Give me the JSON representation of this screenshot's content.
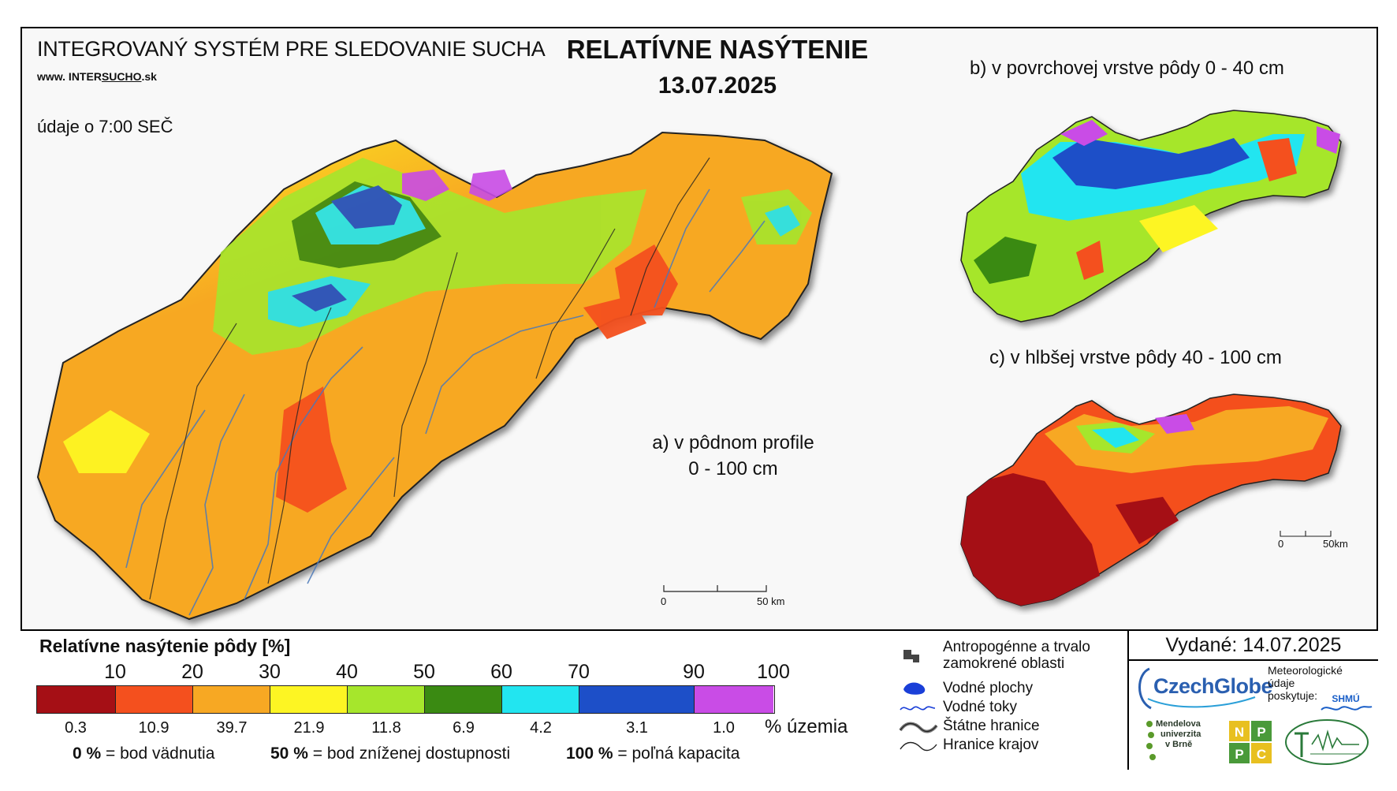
{
  "header": {
    "system_title": "INTEGROVANÝ SYSTÉM PRE SLEDOVANIE SUCHA",
    "website_prefix": "www. INTER",
    "website_underlined": "SUCHO",
    "website_suffix": ".sk",
    "data_time": "údaje o 7:00 SEČ",
    "main_title": "RELATÍVNE NASÝTENIE",
    "date": "13.07.2025"
  },
  "maps": {
    "a_label_line1": "a) v pôdnom profile",
    "a_label_line2": "0 - 100 cm",
    "b_label": "b) v povrchovej vrstve pôdy 0 - 40 cm",
    "c_label": "c) v hlbšej vrstve pôdy 40 - 100 cm",
    "scale_main_zero": "0",
    "scale_main_end": "50 km",
    "scale_small_zero": "0",
    "scale_small_end": "50km"
  },
  "legend": {
    "title": "Relatívne nasýtenie pôdy [%]",
    "ticks": [
      "10",
      "20",
      "30",
      "40",
      "50",
      "60",
      "70",
      "90",
      "100"
    ],
    "classes": [
      {
        "color": "#a50f15",
        "share": "0.3"
      },
      {
        "color": "#f4501e",
        "share": "10.9"
      },
      {
        "color": "#f7a823",
        "share": "39.7"
      },
      {
        "color": "#fdf523",
        "share": "21.9"
      },
      {
        "color": "#a6e62c",
        "share": "11.8"
      },
      {
        "color": "#3a8a12",
        "share": "6.9"
      },
      {
        "color": "#22e5f0",
        "share": "4.2"
      },
      {
        "color": "#1d4fc8",
        "share": "3.1"
      },
      {
        "color": "#c94ce6",
        "share": "1.0"
      }
    ],
    "share_unit": "% územia",
    "note1_value": "0 %",
    "note1_text": "= bod vädnutia",
    "note2_value": "50 %",
    "note2_text": "= bod zníženej dostupnosti",
    "note3_value": "100 %",
    "note3_text": "= poľná kapacita"
  },
  "symbols": {
    "anthropogenic_line1": "Antropogénne a trvalo",
    "anthropogenic_line2": "zamokrené oblasti",
    "water_bodies": "Vodné plochy",
    "water_streams": "Vodné toky",
    "state_border": "Štátne hranice",
    "region_border": "Hranice krajov"
  },
  "issued": {
    "text": "Vydané: 14.07.2025",
    "czechglobe": "CzechGlobe",
    "meteo_line1": "Meteorologické",
    "meteo_line2": "údaje",
    "meteo_line3": "poskytuje:",
    "shmu": "SHMÚ",
    "mendel_line1": "Mendelova",
    "mendel_line2": "univerzita",
    "mendel_line3": "v Brně",
    "nppc_letters": [
      "N",
      "P",
      "P",
      "C"
    ]
  }
}
